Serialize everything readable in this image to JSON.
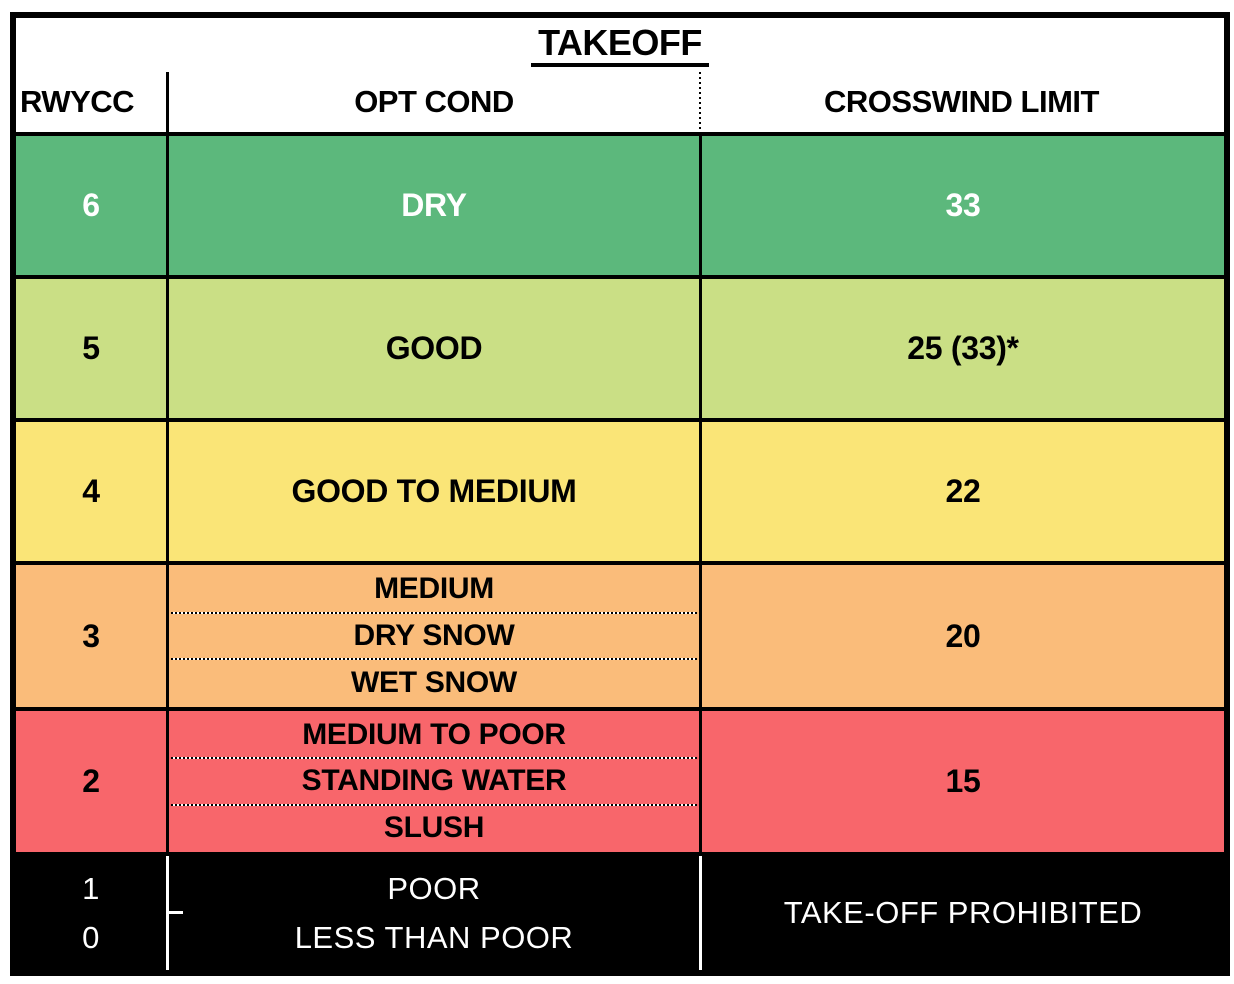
{
  "title": "TAKEOFF",
  "columns": {
    "rwycc": "RWYCC",
    "opt_cond": "OPT COND",
    "crosswind_limit": "CROSSWIND LIMIT"
  },
  "rows": [
    {
      "rwycc": "6",
      "conditions": [
        "DRY"
      ],
      "crosswind_limit": "33",
      "bg": "#5CB87C",
      "fg": "#FFFFFF"
    },
    {
      "rwycc": "5",
      "conditions": [
        "GOOD"
      ],
      "crosswind_limit": "25 (33)*",
      "bg": "#CADF85",
      "fg": "#000000"
    },
    {
      "rwycc": "4",
      "conditions": [
        "GOOD TO MEDIUM"
      ],
      "crosswind_limit": "22",
      "bg": "#FAE577",
      "fg": "#000000"
    },
    {
      "rwycc": "3",
      "conditions": [
        "MEDIUM",
        "DRY SNOW",
        "WET SNOW"
      ],
      "crosswind_limit": "20",
      "bg": "#FABC7A",
      "fg": "#000000"
    },
    {
      "rwycc": "2",
      "conditions": [
        "MEDIUM TO POOR",
        "STANDING WATER",
        "SLUSH"
      ],
      "crosswind_limit": "15",
      "bg": "#F8666B",
      "fg": "#000000"
    }
  ],
  "prohibited_row": {
    "rwycc_values": [
      "1",
      "0"
    ],
    "conditions": [
      "POOR",
      "LESS THAN POOR"
    ],
    "crosswind_limit": "TAKE-OFF PROHIBITED",
    "bg": "#000000",
    "fg": "#FFFFFF"
  },
  "colors": {
    "border": "#000000",
    "header_bg": "#FFFFFF",
    "page_bg": "#FFFFFF"
  }
}
